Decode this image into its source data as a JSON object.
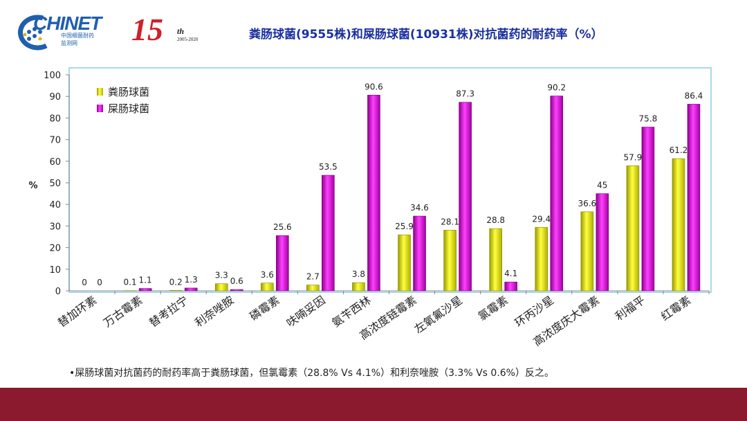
{
  "header": {
    "logo_text": "CHINET",
    "logo_sub1": "中国细菌耐药",
    "logo_sub2": "监测网",
    "anniversary": "15",
    "anniversary_suffix": "th",
    "anniversary_years": "2005-2020",
    "title": "粪肠球菌(9555株)和屎肠球菌(10931株)对抗菌药的耐药率（%）"
  },
  "note": "•屎肠球菌对抗菌药的耐药率高于粪肠球菌，但氯霉素（28.8% Vs 4.1%）和利奈唑胺（3.3% Vs 0.6%）反之。",
  "chart_data": {
    "type": "bar",
    "title": "粪肠球菌(9555株)和屎肠球菌(10931株)对抗菌药的耐药率（%）",
    "xlabel": "",
    "ylabel": "%",
    "ylim": [
      0,
      100
    ],
    "yticks": [
      0,
      10,
      20,
      30,
      40,
      50,
      60,
      70,
      80,
      90,
      100
    ],
    "legend_position": "top-left",
    "categories": [
      "替加环素",
      "万古霉素",
      "替考拉宁",
      "利奈唑胺",
      "磷霉素",
      "呋喃妥因",
      "氨苄西林",
      "高浓度链霉素",
      "左氧氟沙星",
      "氯霉素",
      "环丙沙星",
      "高浓度庆大霉素",
      "利福平",
      "红霉素"
    ],
    "series": [
      {
        "name": "粪肠球菌",
        "color": "#e6e600",
        "values": [
          0,
          0.1,
          0.2,
          3.3,
          3.6,
          2.7,
          3.8,
          25.9,
          28.1,
          28.8,
          29.4,
          36.6,
          57.9,
          61.2
        ]
      },
      {
        "name": "屎肠球菌",
        "color": "#cc00cc",
        "values": [
          0,
          1.1,
          1.3,
          0.6,
          25.6,
          53.5,
          90.6,
          34.6,
          87.3,
          4.1,
          90.2,
          45,
          75.8,
          86.4
        ]
      }
    ]
  }
}
